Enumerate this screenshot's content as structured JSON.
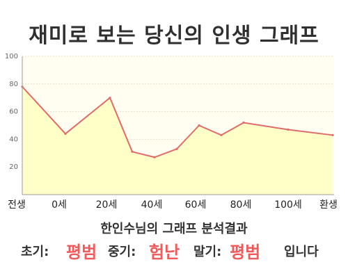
{
  "chart_data": {
    "type": "area",
    "title": "재미로 보는 당신의 인생 그래프",
    "x": [
      "전생",
      "0세",
      "20세",
      "40세",
      "60세",
      "80세",
      "100세",
      "환생"
    ],
    "y_ticks": [
      "20",
      "40",
      "60",
      "80",
      "100"
    ],
    "ylim": [
      0,
      100
    ],
    "grid": true,
    "legend": "none",
    "points": [
      {
        "x": "전생",
        "y": 78
      },
      {
        "x": "0세",
        "y": 44
      },
      {
        "x": "20세",
        "y": 70
      },
      {
        "x": "30세",
        "y": 31
      },
      {
        "x": "40세",
        "y": 27
      },
      {
        "x": "50세",
        "y": 33
      },
      {
        "x": "60세",
        "y": 50
      },
      {
        "x": "70세",
        "y": 43
      },
      {
        "x": "80세",
        "y": 52
      },
      {
        "x": "100세",
        "y": 47
      },
      {
        "x": "환생",
        "y": 43
      }
    ],
    "colors": {
      "line": "#e06b6b",
      "fill": "#ffffc8",
      "plot_background": "#fffef0",
      "grid": "#e4e1c9",
      "axis": "#9a9a9a"
    }
  },
  "result": {
    "title": "한인수님의 그래프 분석결과",
    "early_label": "초기:",
    "early_value": "평범",
    "mid_label": "중기:",
    "mid_value": "험난",
    "late_label": "말기:",
    "late_value": "평범",
    "ending": "입니다"
  }
}
